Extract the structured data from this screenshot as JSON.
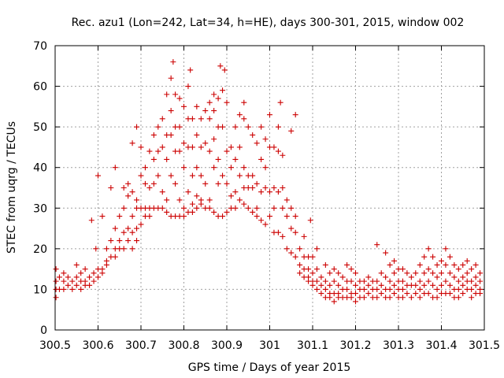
{
  "chart_data": {
    "type": "scatter",
    "title": "Rec. azu1 (Lon=242, Lat=34, h=HE), days 300-301, 2015, window 002",
    "xlabel": "GPS time / Days of year 2015",
    "ylabel": "STEC from uqrg / TECUs",
    "xlim": [
      300.5,
      301.5
    ],
    "ylim": [
      0,
      70
    ],
    "xticks": [
      300.5,
      300.6,
      300.7,
      300.8,
      300.9,
      301,
      301.1,
      301.2,
      301.3,
      301.4,
      301.5
    ],
    "xtick_labels": [
      "300.5",
      "300.6",
      "300.7",
      "300.8",
      "300.9",
      "301",
      "301.1",
      "301.2",
      "301.3",
      "301.4",
      "301.5"
    ],
    "yticks": [
      0,
      10,
      20,
      30,
      40,
      50,
      60,
      70
    ],
    "ytick_labels": [
      "0",
      "10",
      "20",
      "30",
      "40",
      "50",
      "60",
      "70"
    ],
    "grid": true,
    "legend": "none",
    "marker": "+",
    "color": "#cc0000",
    "points": [
      [
        300.502,
        15
      ],
      [
        300.502,
        12
      ],
      [
        300.502,
        10
      ],
      [
        300.502,
        8
      ],
      [
        300.51,
        13
      ],
      [
        300.51,
        10
      ],
      [
        300.52,
        14
      ],
      [
        300.52,
        12
      ],
      [
        300.52,
        10
      ],
      [
        300.53,
        13
      ],
      [
        300.53,
        11
      ],
      [
        300.54,
        12
      ],
      [
        300.54,
        10
      ],
      [
        300.55,
        16
      ],
      [
        300.55,
        13
      ],
      [
        300.55,
        11
      ],
      [
        300.56,
        14
      ],
      [
        300.56,
        12
      ],
      [
        300.56,
        10
      ],
      [
        300.57,
        15
      ],
      [
        300.57,
        12
      ],
      [
        300.57,
        11
      ],
      [
        300.58,
        13
      ],
      [
        300.58,
        11
      ],
      [
        300.585,
        27
      ],
      [
        300.59,
        14
      ],
      [
        300.59,
        12
      ],
      [
        300.595,
        20
      ],
      [
        300.6,
        38
      ],
      [
        300.6,
        15
      ],
      [
        300.6,
        13
      ],
      [
        300.61,
        28
      ],
      [
        300.61,
        15
      ],
      [
        300.61,
        14
      ],
      [
        300.62,
        20
      ],
      [
        300.62,
        17
      ],
      [
        300.62,
        16
      ],
      [
        300.63,
        35
      ],
      [
        300.63,
        22
      ],
      [
        300.63,
        18
      ],
      [
        300.64,
        40
      ],
      [
        300.64,
        25
      ],
      [
        300.64,
        20
      ],
      [
        300.64,
        18
      ],
      [
        300.65,
        28
      ],
      [
        300.65,
        22
      ],
      [
        300.65,
        20
      ],
      [
        300.66,
        35
      ],
      [
        300.66,
        30
      ],
      [
        300.66,
        24
      ],
      [
        300.66,
        20
      ],
      [
        300.67,
        36
      ],
      [
        300.67,
        33
      ],
      [
        300.67,
        25
      ],
      [
        300.67,
        22
      ],
      [
        300.68,
        46
      ],
      [
        300.68,
        34
      ],
      [
        300.68,
        28
      ],
      [
        300.68,
        24
      ],
      [
        300.68,
        20
      ],
      [
        300.69,
        50
      ],
      [
        300.69,
        32
      ],
      [
        300.69,
        30
      ],
      [
        300.69,
        25
      ],
      [
        300.69,
        22
      ],
      [
        300.7,
        45
      ],
      [
        300.7,
        38
      ],
      [
        300.7,
        30
      ],
      [
        300.7,
        26
      ],
      [
        300.71,
        40
      ],
      [
        300.71,
        36
      ],
      [
        300.71,
        30
      ],
      [
        300.71,
        28
      ],
      [
        300.72,
        44
      ],
      [
        300.72,
        35
      ],
      [
        300.72,
        30
      ],
      [
        300.72,
        28
      ],
      [
        300.73,
        48
      ],
      [
        300.73,
        42
      ],
      [
        300.73,
        36
      ],
      [
        300.73,
        30
      ],
      [
        300.74,
        50
      ],
      [
        300.74,
        44
      ],
      [
        300.74,
        38
      ],
      [
        300.74,
        30
      ],
      [
        300.75,
        52
      ],
      [
        300.75,
        45
      ],
      [
        300.75,
        34
      ],
      [
        300.75,
        30
      ],
      [
        300.76,
        58
      ],
      [
        300.76,
        48
      ],
      [
        300.76,
        42
      ],
      [
        300.76,
        32
      ],
      [
        300.76,
        29
      ],
      [
        300.77,
        62
      ],
      [
        300.77,
        54
      ],
      [
        300.77,
        48
      ],
      [
        300.77,
        38
      ],
      [
        300.77,
        28
      ],
      [
        300.775,
        66
      ],
      [
        300.78,
        58
      ],
      [
        300.78,
        50
      ],
      [
        300.78,
        44
      ],
      [
        300.78,
        36
      ],
      [
        300.78,
        28
      ],
      [
        300.79,
        57
      ],
      [
        300.79,
        50
      ],
      [
        300.79,
        44
      ],
      [
        300.79,
        32
      ],
      [
        300.79,
        28
      ],
      [
        300.8,
        55
      ],
      [
        300.8,
        46
      ],
      [
        300.8,
        40
      ],
      [
        300.8,
        30
      ],
      [
        300.8,
        28
      ],
      [
        300.81,
        60
      ],
      [
        300.81,
        52
      ],
      [
        300.81,
        45
      ],
      [
        300.81,
        34
      ],
      [
        300.81,
        29
      ],
      [
        300.815,
        64
      ],
      [
        300.82,
        52
      ],
      [
        300.82,
        45
      ],
      [
        300.82,
        38
      ],
      [
        300.82,
        31
      ],
      [
        300.82,
        29
      ],
      [
        300.83,
        55
      ],
      [
        300.83,
        48
      ],
      [
        300.83,
        40
      ],
      [
        300.83,
        33
      ],
      [
        300.83,
        30
      ],
      [
        300.84,
        52
      ],
      [
        300.84,
        45
      ],
      [
        300.84,
        38
      ],
      [
        300.84,
        32
      ],
      [
        300.84,
        31
      ],
      [
        300.85,
        54
      ],
      [
        300.85,
        46
      ],
      [
        300.85,
        36
      ],
      [
        300.85,
        30
      ],
      [
        300.86,
        56
      ],
      [
        300.86,
        52
      ],
      [
        300.86,
        44
      ],
      [
        300.86,
        32
      ],
      [
        300.86,
        30
      ],
      [
        300.87,
        58
      ],
      [
        300.87,
        54
      ],
      [
        300.87,
        47
      ],
      [
        300.87,
        40
      ],
      [
        300.87,
        29
      ],
      [
        300.88,
        57
      ],
      [
        300.88,
        50
      ],
      [
        300.88,
        42
      ],
      [
        300.88,
        36
      ],
      [
        300.88,
        28
      ],
      [
        300.885,
        65
      ],
      [
        300.89,
        59
      ],
      [
        300.89,
        50
      ],
      [
        300.89,
        38
      ],
      [
        300.89,
        28
      ],
      [
        300.895,
        64
      ],
      [
        300.9,
        56
      ],
      [
        300.9,
        44
      ],
      [
        300.9,
        36
      ],
      [
        300.9,
        29
      ],
      [
        300.91,
        45
      ],
      [
        300.91,
        40
      ],
      [
        300.91,
        33
      ],
      [
        300.91,
        30
      ],
      [
        300.92,
        50
      ],
      [
        300.92,
        42
      ],
      [
        300.92,
        34
      ],
      [
        300.92,
        30
      ],
      [
        300.93,
        53
      ],
      [
        300.93,
        45
      ],
      [
        300.93,
        38
      ],
      [
        300.93,
        32
      ],
      [
        300.94,
        56
      ],
      [
        300.94,
        52
      ],
      [
        300.94,
        40
      ],
      [
        300.94,
        35
      ],
      [
        300.94,
        31
      ],
      [
        300.95,
        50
      ],
      [
        300.95,
        38
      ],
      [
        300.95,
        35
      ],
      [
        300.95,
        30
      ],
      [
        300.96,
        48
      ],
      [
        300.96,
        38
      ],
      [
        300.96,
        35
      ],
      [
        300.96,
        29
      ],
      [
        300.97,
        46
      ],
      [
        300.97,
        36
      ],
      [
        300.97,
        30
      ],
      [
        300.97,
        28
      ],
      [
        300.98,
        50
      ],
      [
        300.98,
        42
      ],
      [
        300.98,
        34
      ],
      [
        300.98,
        27
      ],
      [
        300.99,
        47
      ],
      [
        300.99,
        40
      ],
      [
        300.99,
        35
      ],
      [
        300.99,
        26
      ],
      [
        301.0,
        53
      ],
      [
        301.0,
        45
      ],
      [
        301.0,
        34
      ],
      [
        301.0,
        28
      ],
      [
        301.01,
        45
      ],
      [
        301.01,
        35
      ],
      [
        301.01,
        30
      ],
      [
        301.01,
        24
      ],
      [
        301.02,
        50
      ],
      [
        301.02,
        44
      ],
      [
        301.02,
        34
      ],
      [
        301.02,
        24
      ],
      [
        301.025,
        56
      ],
      [
        301.03,
        43
      ],
      [
        301.03,
        35
      ],
      [
        301.03,
        30
      ],
      [
        301.03,
        23
      ],
      [
        301.04,
        32
      ],
      [
        301.04,
        28
      ],
      [
        301.04,
        20
      ],
      [
        301.05,
        49
      ],
      [
        301.05,
        30
      ],
      [
        301.05,
        25
      ],
      [
        301.05,
        19
      ],
      [
        301.06,
        53
      ],
      [
        301.06,
        28
      ],
      [
        301.06,
        24
      ],
      [
        301.06,
        18
      ],
      [
        301.07,
        20
      ],
      [
        301.07,
        16
      ],
      [
        301.07,
        14
      ],
      [
        301.08,
        23
      ],
      [
        301.08,
        18
      ],
      [
        301.08,
        15
      ],
      [
        301.08,
        13
      ],
      [
        301.09,
        18
      ],
      [
        301.09,
        15
      ],
      [
        301.09,
        13
      ],
      [
        301.09,
        12
      ],
      [
        301.095,
        27
      ],
      [
        301.1,
        18
      ],
      [
        301.1,
        14
      ],
      [
        301.1,
        12
      ],
      [
        301.1,
        11
      ],
      [
        301.11,
        20
      ],
      [
        301.11,
        15
      ],
      [
        301.11,
        12
      ],
      [
        301.11,
        10
      ],
      [
        301.12,
        13
      ],
      [
        301.12,
        11
      ],
      [
        301.12,
        9
      ],
      [
        301.13,
        16
      ],
      [
        301.13,
        12
      ],
      [
        301.13,
        10
      ],
      [
        301.13,
        8
      ],
      [
        301.14,
        14
      ],
      [
        301.14,
        11
      ],
      [
        301.14,
        9
      ],
      [
        301.14,
        8
      ],
      [
        301.15,
        15
      ],
      [
        301.15,
        12
      ],
      [
        301.15,
        9
      ],
      [
        301.15,
        7
      ],
      [
        301.16,
        14
      ],
      [
        301.16,
        11
      ],
      [
        301.16,
        9
      ],
      [
        301.16,
        8
      ],
      [
        301.17,
        13
      ],
      [
        301.17,
        10
      ],
      [
        301.17,
        8
      ],
      [
        301.18,
        16
      ],
      [
        301.18,
        12
      ],
      [
        301.18,
        10
      ],
      [
        301.18,
        8
      ],
      [
        301.19,
        15
      ],
      [
        301.19,
        12
      ],
      [
        301.19,
        9
      ],
      [
        301.19,
        8
      ],
      [
        301.2,
        14
      ],
      [
        301.2,
        11
      ],
      [
        301.2,
        9
      ],
      [
        301.2,
        7
      ],
      [
        301.21,
        12
      ],
      [
        301.21,
        10
      ],
      [
        301.21,
        8
      ],
      [
        301.22,
        12
      ],
      [
        301.22,
        10
      ],
      [
        301.22,
        8
      ],
      [
        301.23,
        13
      ],
      [
        301.23,
        11
      ],
      [
        301.23,
        9
      ],
      [
        301.24,
        12
      ],
      [
        301.24,
        10
      ],
      [
        301.24,
        8
      ],
      [
        301.25,
        21
      ],
      [
        301.25,
        12
      ],
      [
        301.25,
        10
      ],
      [
        301.25,
        8
      ],
      [
        301.26,
        14
      ],
      [
        301.26,
        11
      ],
      [
        301.26,
        9
      ],
      [
        301.27,
        19
      ],
      [
        301.27,
        13
      ],
      [
        301.27,
        10
      ],
      [
        301.27,
        8
      ],
      [
        301.28,
        16
      ],
      [
        301.28,
        12
      ],
      [
        301.28,
        10
      ],
      [
        301.28,
        8
      ],
      [
        301.29,
        17
      ],
      [
        301.29,
        14
      ],
      [
        301.29,
        11
      ],
      [
        301.29,
        9
      ],
      [
        301.3,
        15
      ],
      [
        301.3,
        12
      ],
      [
        301.3,
        10
      ],
      [
        301.3,
        8
      ],
      [
        301.31,
        15
      ],
      [
        301.31,
        12
      ],
      [
        301.31,
        10
      ],
      [
        301.31,
        8
      ],
      [
        301.32,
        14
      ],
      [
        301.32,
        11
      ],
      [
        301.32,
        9
      ],
      [
        301.33,
        13
      ],
      [
        301.33,
        11
      ],
      [
        301.33,
        8
      ],
      [
        301.34,
        14
      ],
      [
        301.34,
        11
      ],
      [
        301.34,
        9
      ],
      [
        301.35,
        16
      ],
      [
        301.35,
        12
      ],
      [
        301.35,
        10
      ],
      [
        301.35,
        8
      ],
      [
        301.36,
        18
      ],
      [
        301.36,
        14
      ],
      [
        301.36,
        11
      ],
      [
        301.36,
        9
      ],
      [
        301.37,
        20
      ],
      [
        301.37,
        15
      ],
      [
        301.37,
        12
      ],
      [
        301.37,
        9
      ],
      [
        301.38,
        18
      ],
      [
        301.38,
        14
      ],
      [
        301.38,
        11
      ],
      [
        301.38,
        8
      ],
      [
        301.39,
        16
      ],
      [
        301.39,
        13
      ],
      [
        301.39,
        10
      ],
      [
        301.39,
        8
      ],
      [
        301.4,
        17
      ],
      [
        301.4,
        14
      ],
      [
        301.4,
        11
      ],
      [
        301.4,
        9
      ],
      [
        301.41,
        20
      ],
      [
        301.41,
        16
      ],
      [
        301.41,
        12
      ],
      [
        301.41,
        9
      ],
      [
        301.42,
        18
      ],
      [
        301.42,
        14
      ],
      [
        301.42,
        11
      ],
      [
        301.42,
        9
      ],
      [
        301.43,
        16
      ],
      [
        301.43,
        13
      ],
      [
        301.43,
        10
      ],
      [
        301.43,
        8
      ],
      [
        301.44,
        15
      ],
      [
        301.44,
        12
      ],
      [
        301.44,
        10
      ],
      [
        301.44,
        8
      ],
      [
        301.45,
        16
      ],
      [
        301.45,
        13
      ],
      [
        301.45,
        11
      ],
      [
        301.45,
        9
      ],
      [
        301.46,
        17
      ],
      [
        301.46,
        14
      ],
      [
        301.46,
        12
      ],
      [
        301.46,
        10
      ],
      [
        301.47,
        15
      ],
      [
        301.47,
        12
      ],
      [
        301.47,
        10
      ],
      [
        301.47,
        8
      ],
      [
        301.48,
        16
      ],
      [
        301.48,
        13
      ],
      [
        301.48,
        11
      ],
      [
        301.48,
        9
      ],
      [
        301.49,
        14
      ],
      [
        301.49,
        12
      ],
      [
        301.49,
        10
      ],
      [
        301.49,
        9
      ]
    ]
  }
}
